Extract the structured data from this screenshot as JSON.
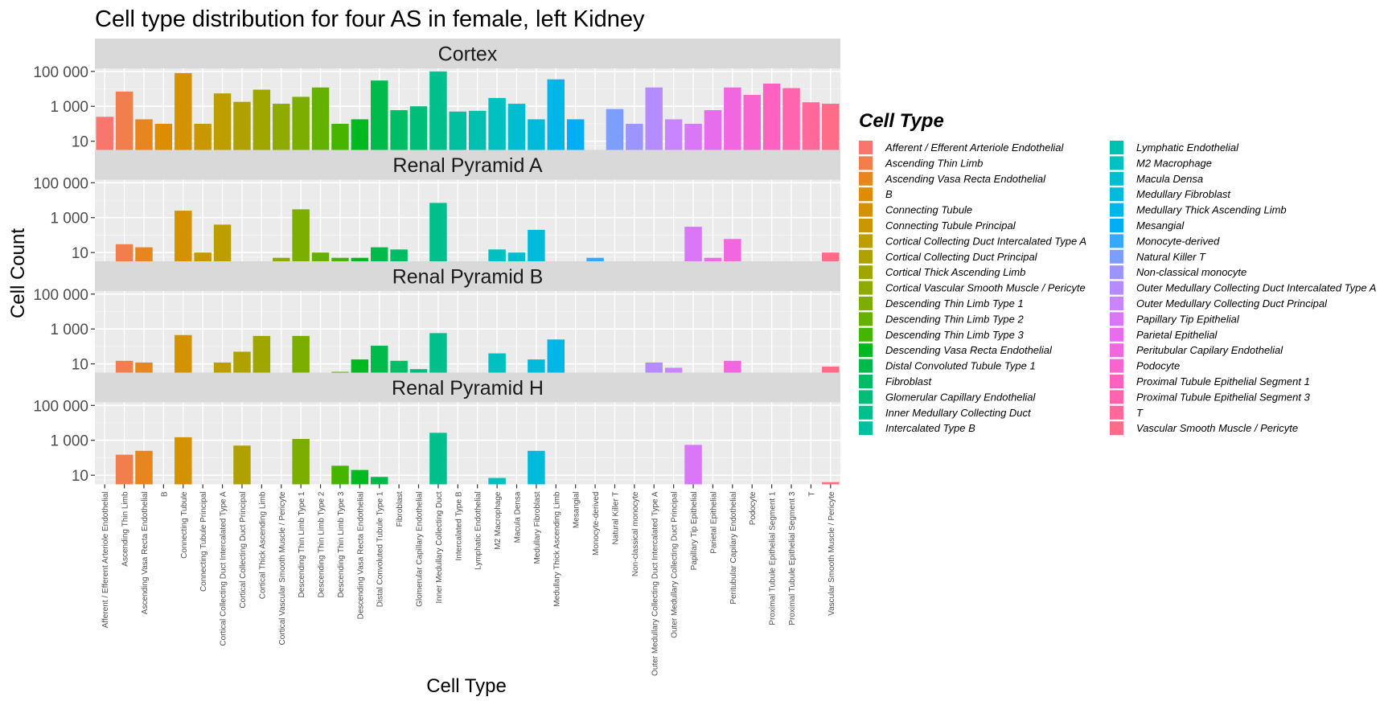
{
  "chart_data": {
    "type": "bar",
    "title": "Cell type distribution for four AS in female, left Kidney",
    "xlabel": "Cell Type",
    "ylabel": "Cell Count",
    "y_scale": "log10",
    "ylim": [
      3,
      150000
    ],
    "y_ticks": [
      {
        "value": 10,
        "label": "10"
      },
      {
        "value": 1000,
        "label": "1 000"
      },
      {
        "value": 100000,
        "label": "100 000"
      }
    ],
    "grid": true,
    "legend": {
      "title": "Cell Type",
      "position": "right",
      "columns": 2
    },
    "categories": [
      "Afferent / Efferent Arteriole Endothelial",
      "Ascending Thin Limb",
      "Ascending Vasa Recta Endothelial",
      "B",
      "Connecting Tubule",
      "Connecting Tubule Principal",
      "Cortical Collecting Duct Intercalated Type A",
      "Cortical Collecting Duct Principal",
      "Cortical Thick Ascending Limb",
      "Cortical Vascular Smooth Muscle / Pericyte",
      "Descending Thin Limb Type 1",
      "Descending Thin Limb Type 2",
      "Descending Thin Limb Type 3",
      "Descending Vasa Recta Endothelial",
      "Distal Convoluted Tubule Type 1",
      "Fibroblast",
      "Glomerular Capillary Endothelial",
      "Inner Medullary Collecting Duct",
      "Intercalated Type B",
      "Lymphatic Endothelial",
      "M2 Macrophage",
      "Macula Densa",
      "Medullary Fibroblast",
      "Medullary Thick Ascending Limb",
      "Mesangial",
      "Monocyte-derived",
      "Natural Killer T",
      "Non-classical monocyte",
      "Outer Medullary Collecting Duct Intercalated Type A",
      "Outer Medullary Collecting Duct Principal",
      "Papillary Tip Epithelial",
      "Parietal Epithelial",
      "Peritubular Capilary Endothelial",
      "Podocyte",
      "Proximal Tubule Epithelial Segment 1",
      "Proximal Tubule Epithelial Segment 3",
      "T",
      "Vascular Smooth Muscle / Pericyte"
    ],
    "colors": [
      "#F8766D",
      "#F07F4D",
      "#E7851E",
      "#DE8C00",
      "#D49200",
      "#C99800",
      "#BD9D00",
      "#AFA200",
      "#A0A600",
      "#8FAA00",
      "#7BAE00",
      "#64B200",
      "#45B500",
      "#00B81F",
      "#00BA4B",
      "#00BC65",
      "#00BE7A",
      "#00BF8D",
      "#00C09F",
      "#00C1B0",
      "#00C0C0",
      "#00BDCF",
      "#00BADC",
      "#00B5E8",
      "#00AFF3",
      "#38A8FF",
      "#7B9EFF",
      "#9C95FF",
      "#B48CFF",
      "#C984FF",
      "#D977F6",
      "#E66EEC",
      "#F067DF",
      "#F864D0",
      "#FE61C0",
      "#FF64AE",
      "#FF699A",
      "#FF6C87"
    ],
    "panels": [
      {
        "name": "Cortex",
        "values": [
          250,
          7000,
          180,
          100,
          80000,
          100,
          5500,
          1800,
          9000,
          1400,
          3500,
          12000,
          100,
          180,
          30000,
          600,
          1000,
          100000,
          500,
          550,
          3000,
          1400,
          180,
          35000,
          180,
          null,
          700,
          100,
          12000,
          180,
          100,
          600,
          12000,
          4500,
          20000,
          11000,
          1700,
          1400
        ]
      },
      {
        "name": "Renal Pyramid A",
        "values": [
          null,
          30,
          20,
          null,
          2500,
          10,
          400,
          null,
          null,
          5,
          3000,
          10,
          5,
          5,
          20,
          15,
          null,
          7000,
          null,
          null,
          15,
          10,
          200,
          null,
          null,
          5,
          null,
          null,
          null,
          null,
          300,
          5,
          60,
          null,
          null,
          null,
          null,
          10
        ]
      },
      {
        "name": "Renal Pyramid B",
        "values": [
          3,
          15,
          12,
          null,
          450,
          2,
          12,
          50,
          400,
          2,
          400,
          3,
          3.5,
          18,
          110,
          15,
          5,
          580,
          null,
          null,
          40,
          null,
          18,
          250,
          null,
          null,
          null,
          null,
          12,
          6,
          null,
          2,
          15,
          null,
          null,
          null,
          null,
          7
        ]
      },
      {
        "name": "Renal Pyramid H",
        "values": [
          null,
          150,
          250,
          null,
          1500,
          null,
          null,
          500,
          null,
          null,
          1200,
          null,
          35,
          20,
          8,
          null,
          null,
          2700,
          null,
          null,
          7,
          null,
          250,
          null,
          null,
          null,
          null,
          null,
          null,
          null,
          550,
          null,
          null,
          null,
          null,
          null,
          null,
          4
        ]
      }
    ]
  }
}
